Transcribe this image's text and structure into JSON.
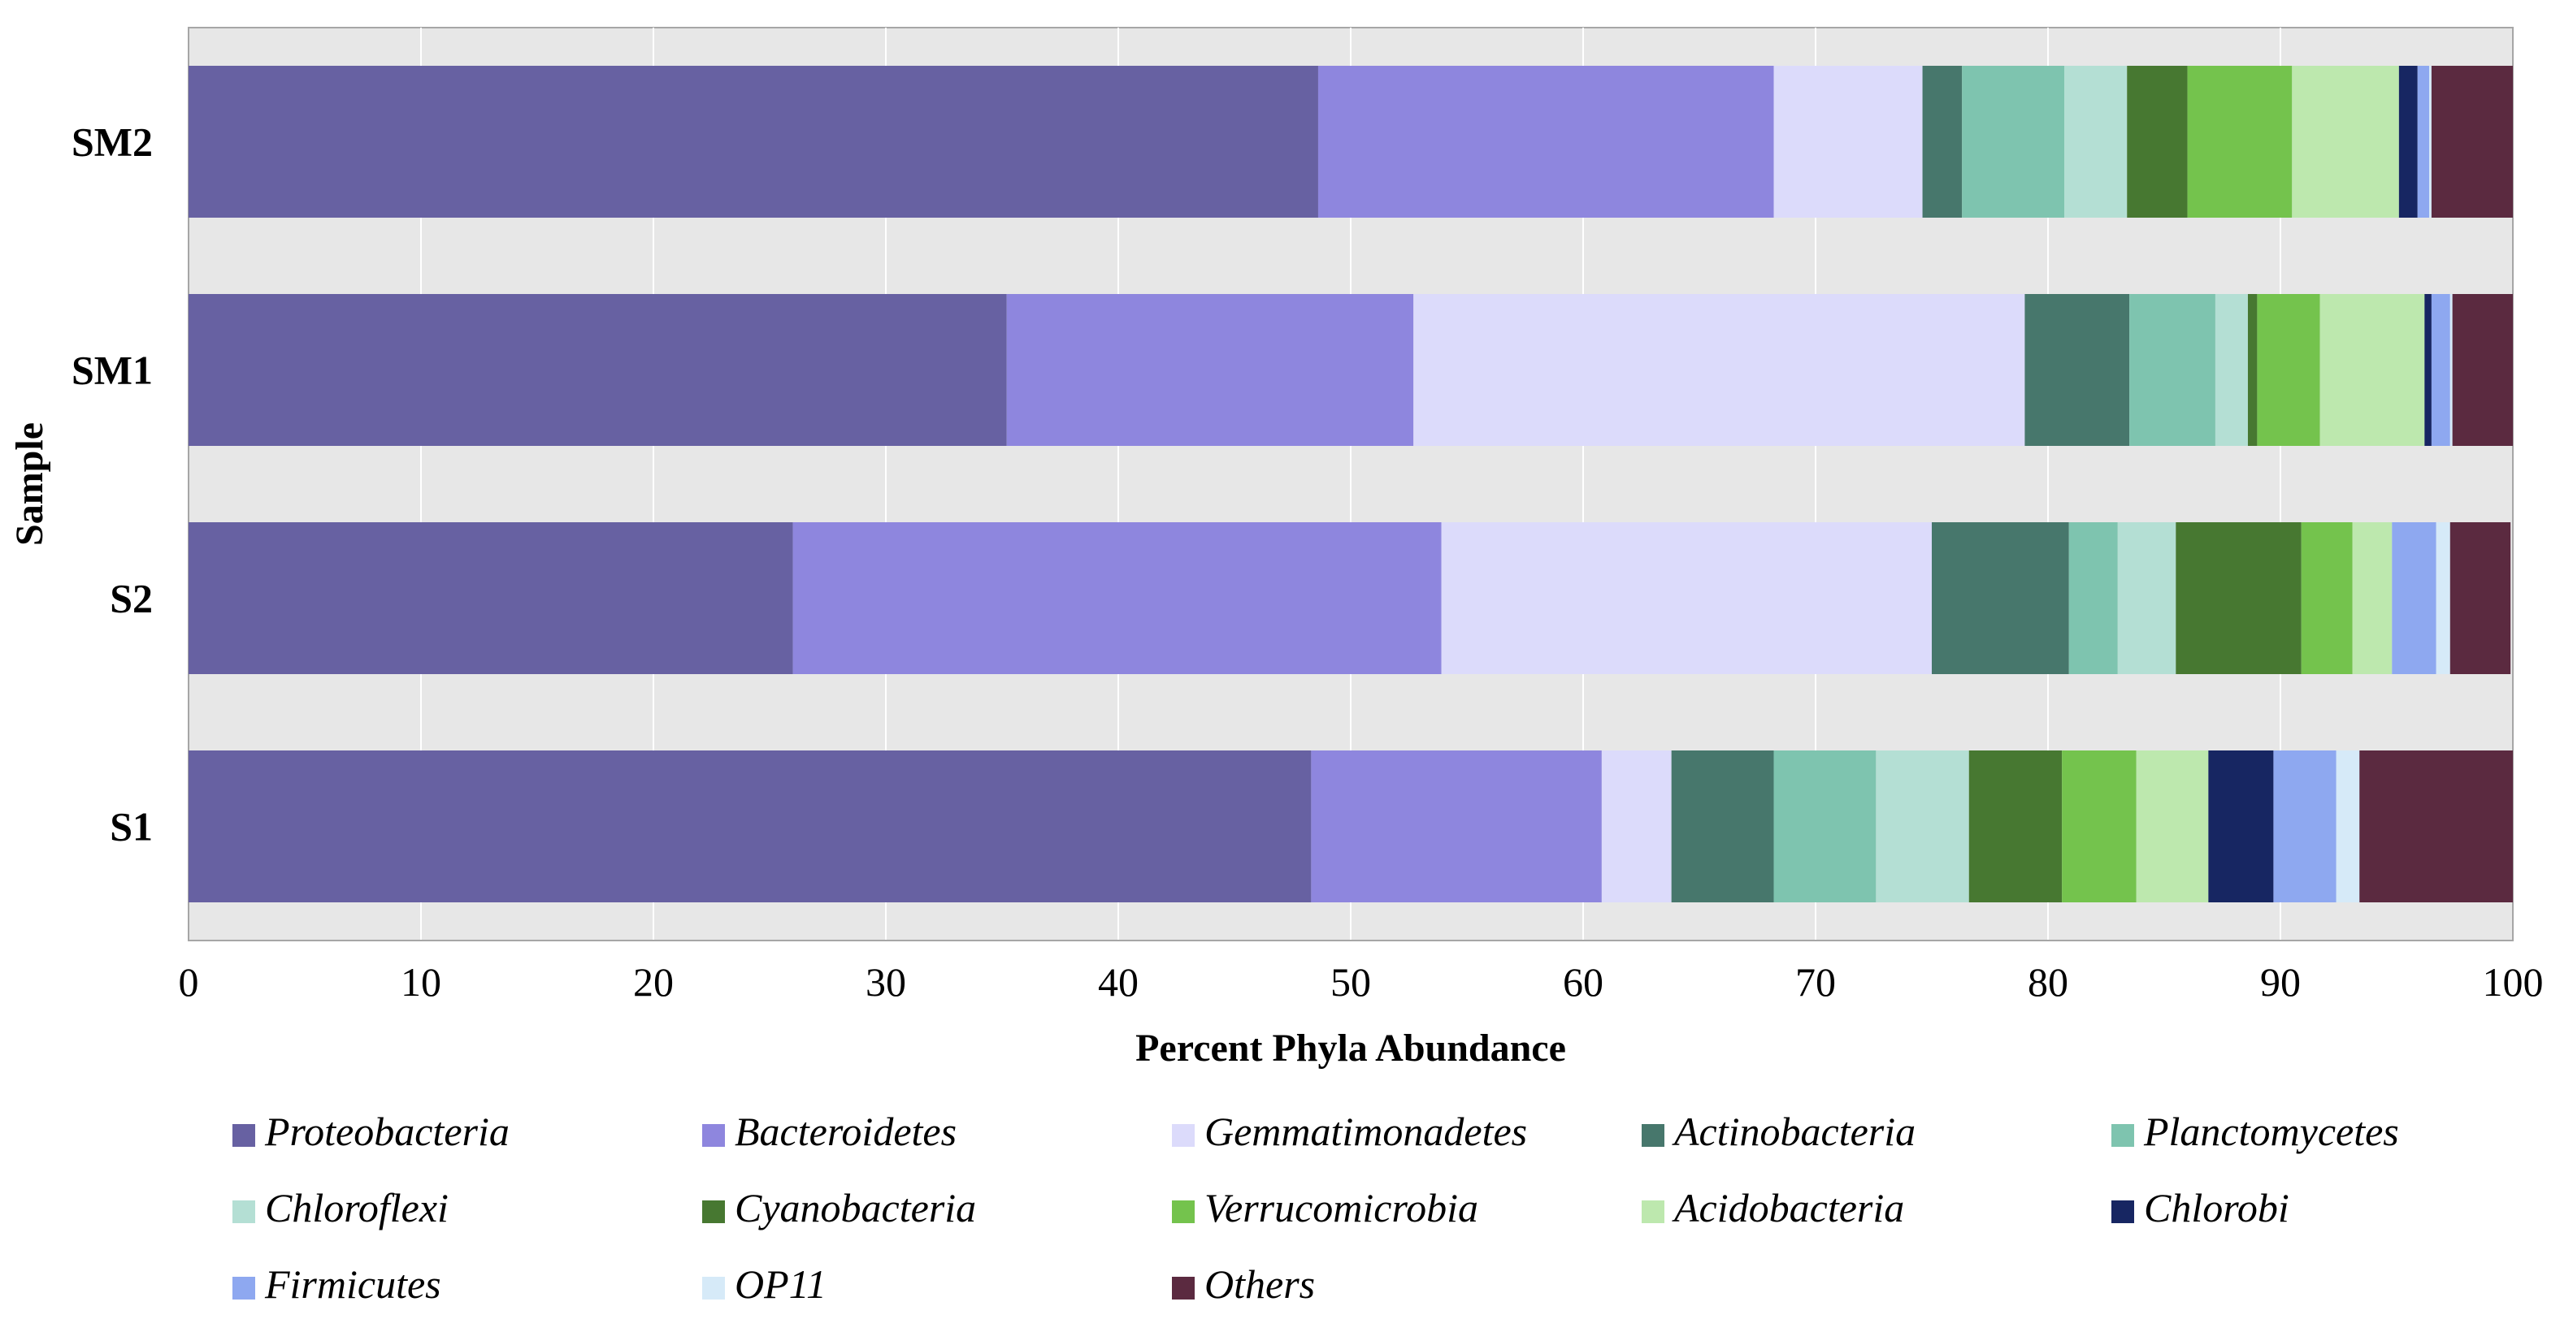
{
  "chart_data": {
    "type": "bar",
    "orientation": "horizontal",
    "stacked": true,
    "title": "",
    "xlabel": "Percent Phyla Abundance",
    "ylabel": "Sample",
    "xlim": [
      0,
      100
    ],
    "x_ticks": [
      "0",
      "10",
      "20",
      "30",
      "40",
      "50",
      "60",
      "70",
      "80",
      "90",
      "100"
    ],
    "categories": [
      "SM2",
      "SM1",
      "S2",
      "S1"
    ],
    "grid": true,
    "legend_position": "bottom",
    "series": [
      {
        "name": "Proteobacteria",
        "color": "#6761A2",
        "values": [
          48.6,
          35.2,
          26.0,
          48.3
        ]
      },
      {
        "name": "Bacteroidetes",
        "color": "#8E86DE",
        "values": [
          19.6,
          17.5,
          27.9,
          12.5
        ]
      },
      {
        "name": "Gemmatimonadetes",
        "color": "#DCDBFB",
        "values": [
          6.4,
          26.3,
          21.1,
          3.0
        ]
      },
      {
        "name": "Actinobacteria",
        "color": "#47776C",
        "values": [
          1.7,
          4.5,
          5.9,
          4.4
        ]
      },
      {
        "name": "Planctomycetes",
        "color": "#7EC4AF",
        "values": [
          4.4,
          3.7,
          2.1,
          4.4
        ]
      },
      {
        "name": "Chloroflexi",
        "color": "#B4DFD4",
        "values": [
          2.7,
          1.4,
          2.5,
          4.0
        ]
      },
      {
        "name": "Cyanobacteria",
        "color": "#477831",
        "values": [
          2.6,
          0.4,
          5.4,
          4.0
        ]
      },
      {
        "name": "Verrucomicrobia",
        "color": "#74C34D",
        "values": [
          4.5,
          2.7,
          2.2,
          3.2
        ]
      },
      {
        "name": "Acidobacteria",
        "color": "#BDE8AE",
        "values": [
          4.6,
          4.5,
          1.7,
          3.1
        ]
      },
      {
        "name": "Chlorobi",
        "color": "#172662",
        "values": [
          0.8,
          0.3,
          0.0,
          2.8
        ]
      },
      {
        "name": "Firmicutes",
        "color": "#8EA8F0",
        "values": [
          0.5,
          0.8,
          1.9,
          2.7
        ]
      },
      {
        "name": "OP11",
        "color": "#D6EAF8",
        "values": [
          0.1,
          0.1,
          0.6,
          1.0
        ]
      },
      {
        "name": "Others",
        "color": "#5B2A40",
        "values": [
          3.5,
          2.6,
          2.6,
          6.6
        ]
      }
    ]
  },
  "styles": {
    "plot_background": "#E7E7E7",
    "grid_color": "#FFFFFF",
    "axis_color": "#A6A6A6"
  }
}
